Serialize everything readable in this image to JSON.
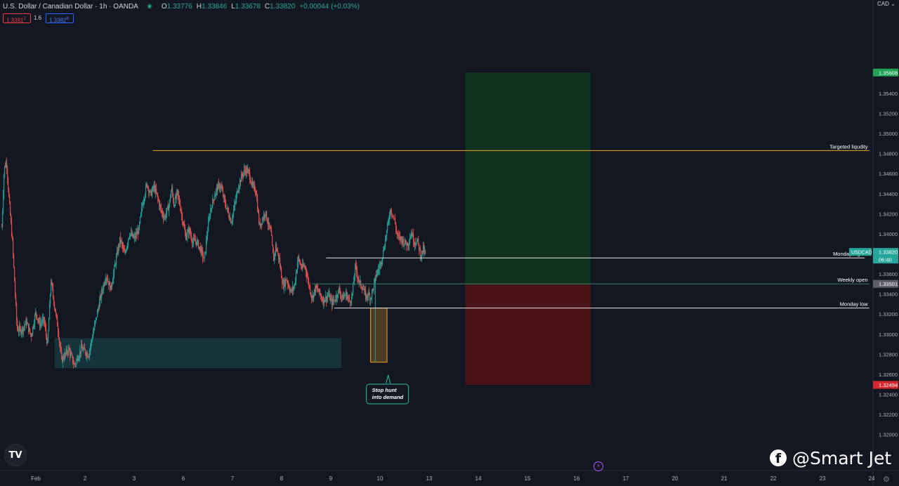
{
  "header": {
    "symbol": "U.S. Dollar / Canadian Dollar · 1h · OANDA",
    "open_label": "O",
    "open": "1.33776",
    "high_label": "H",
    "high": "1.33846",
    "low_label": "L",
    "low": "1.33678",
    "close_label": "C",
    "close": "1.33820",
    "change": "+0.00044 (+0.03%)"
  },
  "trade": {
    "sell": "1.3381",
    "sell_sup": "2",
    "spread": "1.6",
    "buy": "1.3382",
    "buy_sup": "8"
  },
  "currency_label": "CAD",
  "brand": {
    "fb_glyph": "f",
    "handle": "@Smart Jet"
  },
  "colors": {
    "up": "#26a69a",
    "down": "#ef5350",
    "background": "#131722",
    "target_zone": "#10331f",
    "stop_zone": "#4a1318",
    "demand_zone": "#16323b",
    "liquidity_line": "#f5a623"
  },
  "chart_data": {
    "type": "candlestick",
    "title": "U.S. Dollar / Canadian Dollar · 1h · OANDA",
    "ylim": [
      1.3178,
      1.3617
    ],
    "y_ticks": [
      "1.35608",
      "1.35400",
      "1.35200",
      "1.35000",
      "1.34800",
      "1.34600",
      "1.34400",
      "1.34200",
      "1.34000",
      "1.33820",
      "1.33600",
      "1.33501",
      "1.33400",
      "1.33200",
      "1.33000",
      "1.32800",
      "1.32600",
      "1.32494",
      "1.32400",
      "1.32200",
      "1.32000"
    ],
    "x_ticks": [
      {
        "label": "Feb",
        "x": 0
      },
      {
        "label": "2",
        "x": 42
      },
      {
        "label": "3",
        "x": 84
      },
      {
        "label": "6",
        "x": 126
      },
      {
        "label": "7",
        "x": 168
      },
      {
        "label": "8",
        "x": 210
      },
      {
        "label": "9",
        "x": 252
      },
      {
        "label": "10",
        "x": 294
      },
      {
        "label": "13",
        "x": 336
      },
      {
        "label": "14",
        "x": 378
      },
      {
        "label": "15",
        "x": 420
      },
      {
        "label": "16",
        "x": 462
      },
      {
        "label": "17",
        "x": 504
      },
      {
        "label": "20",
        "x": 546
      },
      {
        "label": "21",
        "x": 588
      },
      {
        "label": "22",
        "x": 630
      },
      {
        "label": "23",
        "x": 672
      },
      {
        "label": "24",
        "x": 714
      }
    ],
    "x_range": [
      -29,
      720
    ],
    "price_path": [
      [
        -29,
        1.3407
      ],
      [
        -27,
        1.3465
      ],
      [
        -25,
        1.3472
      ],
      [
        -23,
        1.3436
      ],
      [
        -20,
        1.3392
      ],
      [
        -16,
        1.3305
      ],
      [
        -12,
        1.3304
      ],
      [
        -8,
        1.3312
      ],
      [
        -4,
        1.3298
      ],
      [
        0,
        1.3322
      ],
      [
        3,
        1.331
      ],
      [
        7,
        1.3314
      ],
      [
        10,
        1.3289
      ],
      [
        13,
        1.3353
      ],
      [
        16,
        1.3328
      ],
      [
        19,
        1.3305
      ],
      [
        22,
        1.3274
      ],
      [
        28,
        1.3285
      ],
      [
        33,
        1.3269
      ],
      [
        39,
        1.3286
      ],
      [
        45,
        1.3279
      ],
      [
        50,
        1.3307
      ],
      [
        55,
        1.3335
      ],
      [
        60,
        1.3359
      ],
      [
        64,
        1.3345
      ],
      [
        68,
        1.3371
      ],
      [
        72,
        1.3395
      ],
      [
        76,
        1.3379
      ],
      [
        80,
        1.3401
      ],
      [
        84,
        1.3395
      ],
      [
        88,
        1.3404
      ],
      [
        91,
        1.3429
      ],
      [
        95,
        1.345
      ],
      [
        98,
        1.3439
      ],
      [
        101,
        1.3447
      ],
      [
        104,
        1.3436
      ],
      [
        107,
        1.3423
      ],
      [
        110,
        1.3416
      ],
      [
        114,
        1.3429
      ],
      [
        116,
        1.3446
      ],
      [
        118,
        1.3429
      ],
      [
        121,
        1.3441
      ],
      [
        124,
        1.3423
      ],
      [
        128,
        1.3397
      ],
      [
        131,
        1.3404
      ],
      [
        134,
        1.3392
      ],
      [
        137,
        1.3393
      ],
      [
        141,
        1.3384
      ],
      [
        144,
        1.3373
      ],
      [
        146,
        1.3397
      ],
      [
        149,
        1.3423
      ],
      [
        152,
        1.3436
      ],
      [
        155,
        1.3446
      ],
      [
        158,
        1.3448
      ],
      [
        161,
        1.3433
      ],
      [
        164,
        1.3422
      ],
      [
        167,
        1.3412
      ],
      [
        170,
        1.3429
      ],
      [
        173,
        1.3447
      ],
      [
        176,
        1.3458
      ],
      [
        179,
        1.3464
      ],
      [
        182,
        1.3461
      ],
      [
        185,
        1.3447
      ],
      [
        188,
        1.3444
      ],
      [
        191,
        1.3407
      ],
      [
        193,
        1.3413
      ],
      [
        196,
        1.3422
      ],
      [
        199,
        1.3408
      ],
      [
        201,
        1.34
      ],
      [
        203,
        1.3373
      ],
      [
        205,
        1.3388
      ],
      [
        208,
        1.3374
      ],
      [
        211,
        1.3348
      ],
      [
        214,
        1.3355
      ],
      [
        218,
        1.3342
      ],
      [
        221,
        1.3348
      ],
      [
        224,
        1.3376
      ],
      [
        227,
        1.3366
      ],
      [
        230,
        1.3368
      ],
      [
        233,
        1.3351
      ],
      [
        236,
        1.3336
      ],
      [
        239,
        1.3346
      ],
      [
        242,
        1.3342
      ],
      [
        245,
        1.3334
      ],
      [
        248,
        1.3336
      ],
      [
        250,
        1.3339
      ],
      [
        253,
        1.3331
      ],
      [
        256,
        1.3336
      ],
      [
        259,
        1.3344
      ],
      [
        262,
        1.3336
      ],
      [
        265,
        1.334
      ],
      [
        268,
        1.3333
      ],
      [
        270,
        1.3336
      ],
      [
        273,
        1.3368
      ],
      [
        276,
        1.3352
      ],
      [
        279,
        1.3347
      ],
      [
        282,
        1.3337
      ],
      [
        284,
        1.334
      ],
      [
        286,
        1.3336
      ],
      [
        288,
        1.3345
      ],
      [
        291,
        1.336
      ],
      [
        294,
        1.3368
      ],
      [
        297,
        1.3383
      ],
      [
        300,
        1.3404
      ],
      [
        303,
        1.3425
      ],
      [
        305,
        1.3419
      ],
      [
        307,
        1.341
      ],
      [
        309,
        1.3397
      ],
      [
        312,
        1.3395
      ],
      [
        315,
        1.3391
      ],
      [
        318,
        1.339
      ],
      [
        321,
        1.3402
      ],
      [
        323,
        1.3392
      ],
      [
        326,
        1.3393
      ],
      [
        329,
        1.3378
      ],
      [
        331,
        1.3385
      ],
      [
        333,
        1.3378
      ]
    ],
    "last_price": "1.33820",
    "countdown": "06:40",
    "symbol_tag": "USDCAD",
    "tp_price": "1.35608",
    "sl_price": "1.32494",
    "weekly_open_price": "1.33501",
    "annotations": {
      "targeted_liquidity": {
        "label": "Targeted liqudity",
        "price": 1.3483,
        "x_from": 100,
        "x_to": 712
      },
      "monday_high": {
        "label": "Monday high",
        "price": 1.3376,
        "x_from": 248,
        "x_to": 708
      },
      "weekly_open": {
        "label": "Weekly open",
        "price": 1.33501,
        "x_from": 236,
        "x_to": 712
      },
      "monday_low": {
        "label": "Monday low",
        "price": 1.3326,
        "x_from": 255,
        "x_to": 712
      },
      "demand_zone": {
        "price_top": 1.3296,
        "price_bottom": 1.3266,
        "x_from": 16,
        "x_to": 261
      },
      "stop_hunt_box": {
        "price_top": 1.3326,
        "price_bottom": 1.3272,
        "x_from": 286,
        "x_to": 300
      },
      "long_target_zone": {
        "price_top": 1.35608,
        "price_bottom": 1.33501,
        "x_from": 367,
        "x_to": 474
      },
      "long_stop_zone": {
        "price_top": 1.33501,
        "price_bottom": 1.32494,
        "x_from": 367,
        "x_to": 474
      },
      "callout": "Stop hunt into demand"
    }
  }
}
